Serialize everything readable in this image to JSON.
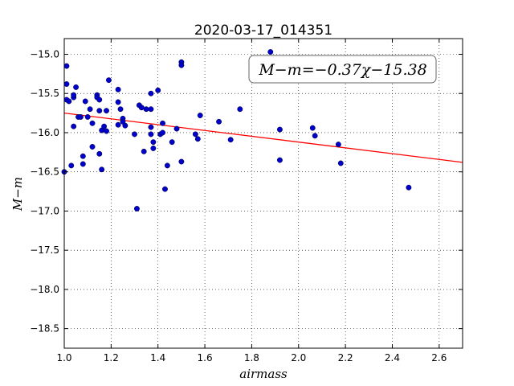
{
  "chart_data": {
    "type": "scatter",
    "title": "2020-03-17_014351",
    "xlabel": "airmass",
    "ylabel": "M−m",
    "xlim": [
      1.0,
      2.7
    ],
    "ylim": [
      -18.75,
      -14.8
    ],
    "x_ticks": [
      1.0,
      1.2,
      1.4,
      1.6,
      1.8,
      2.0,
      2.2,
      2.4,
      2.6
    ],
    "x_tick_labels": [
      "1.0",
      "1.2",
      "1.4",
      "1.6",
      "1.8",
      "2.0",
      "2.2",
      "2.4",
      "2.6"
    ],
    "y_ticks": [
      -15.0,
      -15.5,
      -16.0,
      -16.5,
      -17.0,
      -17.5,
      -18.0,
      -18.5
    ],
    "y_tick_labels": [
      "−15.0",
      "−15.5",
      "−16.0",
      "−16.5",
      "−17.0",
      "−17.5",
      "−18.0",
      "−18.5"
    ],
    "grid": true,
    "annotation": "M−m=−0.37χ−15.38",
    "fit": {
      "slope": -0.37,
      "intercept": -15.38,
      "color": "#ff0000"
    },
    "point_color": "#0000cc",
    "points": [
      [
        1.0,
        -16.5
      ],
      [
        1.01,
        -15.15
      ],
      [
        1.01,
        -15.38
      ],
      [
        1.01,
        -15.58
      ],
      [
        1.02,
        -15.6
      ],
      [
        1.03,
        -16.42
      ],
      [
        1.04,
        -15.55
      ],
      [
        1.04,
        -15.52
      ],
      [
        1.04,
        -15.92
      ],
      [
        1.05,
        -15.42
      ],
      [
        1.06,
        -15.8
      ],
      [
        1.07,
        -15.8
      ],
      [
        1.08,
        -16.3
      ],
      [
        1.08,
        -16.4
      ],
      [
        1.09,
        -15.6
      ],
      [
        1.1,
        -15.8
      ],
      [
        1.11,
        -15.7
      ],
      [
        1.12,
        -15.88
      ],
      [
        1.12,
        -16.18
      ],
      [
        1.14,
        -15.52
      ],
      [
        1.14,
        -15.55
      ],
      [
        1.15,
        -15.58
      ],
      [
        1.15,
        -16.27
      ],
      [
        1.15,
        -15.72
      ],
      [
        1.16,
        -16.47
      ],
      [
        1.16,
        -15.97
      ],
      [
        1.17,
        -15.92
      ],
      [
        1.18,
        -15.98
      ],
      [
        1.18,
        -15.72
      ],
      [
        1.19,
        -15.33
      ],
      [
        1.23,
        -15.45
      ],
      [
        1.23,
        -15.61
      ],
      [
        1.23,
        -15.9
      ],
      [
        1.24,
        -15.7
      ],
      [
        1.25,
        -15.82
      ],
      [
        1.25,
        -15.86
      ],
      [
        1.26,
        -15.91
      ],
      [
        1.3,
        -16.02
      ],
      [
        1.31,
        -16.97
      ],
      [
        1.32,
        -15.65
      ],
      [
        1.33,
        -15.68
      ],
      [
        1.34,
        -16.24
      ],
      [
        1.35,
        -15.7
      ],
      [
        1.37,
        -15.5
      ],
      [
        1.37,
        -15.7
      ],
      [
        1.37,
        -15.93
      ],
      [
        1.37,
        -16.02
      ],
      [
        1.38,
        -16.12
      ],
      [
        1.38,
        -16.2
      ],
      [
        1.4,
        -15.46
      ],
      [
        1.41,
        -16.02
      ],
      [
        1.42,
        -15.88
      ],
      [
        1.42,
        -16.0
      ],
      [
        1.43,
        -16.72
      ],
      [
        1.44,
        -16.42
      ],
      [
        1.46,
        -16.12
      ],
      [
        1.48,
        -15.95
      ],
      [
        1.5,
        -15.1
      ],
      [
        1.5,
        -15.14
      ],
      [
        1.5,
        -16.37
      ],
      [
        1.56,
        -16.02
      ],
      [
        1.57,
        -16.08
      ],
      [
        1.58,
        -15.78
      ],
      [
        1.66,
        -15.86
      ],
      [
        1.71,
        -16.09
      ],
      [
        1.75,
        -15.7
      ],
      [
        1.88,
        -14.97
      ],
      [
        1.92,
        -15.96
      ],
      [
        1.92,
        -16.35
      ],
      [
        2.06,
        -15.94
      ],
      [
        2.07,
        -16.04
      ],
      [
        2.17,
        -16.15
      ],
      [
        2.18,
        -16.39
      ],
      [
        2.47,
        -16.7
      ]
    ]
  }
}
